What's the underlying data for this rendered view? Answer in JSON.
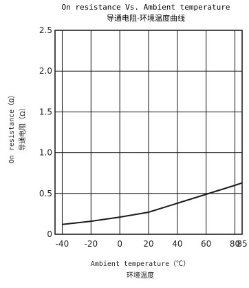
{
  "chart_data": {
    "type": "line",
    "title": "On resistance Vs. Ambient temperature",
    "subtitle": "导通电阻-环境温度曲线",
    "xlabel": "Ambient temperature（℃）",
    "xlabel_cn": "环境温度",
    "ylabel": "On resistance（Ω）",
    "ylabel_cn": "导通电阻（Ω）",
    "x_ticks": [
      "-40",
      "-20",
      "0",
      "20",
      "40",
      "60",
      "80",
      "85"
    ],
    "y_ticks": [
      "0",
      "0.5",
      "1.0",
      "1.5",
      "2.0",
      "2.5"
    ],
    "xlim": [
      -45,
      85
    ],
    "ylim": [
      0,
      2.5
    ],
    "grid": true,
    "series": [
      {
        "x": [
          -40,
          -20,
          0,
          20,
          40,
          60,
          80,
          85
        ],
        "values": [
          0.12,
          0.16,
          0.21,
          0.27,
          0.38,
          0.49,
          0.6,
          0.63
        ]
      }
    ],
    "line_color": "#1a1a1a"
  }
}
